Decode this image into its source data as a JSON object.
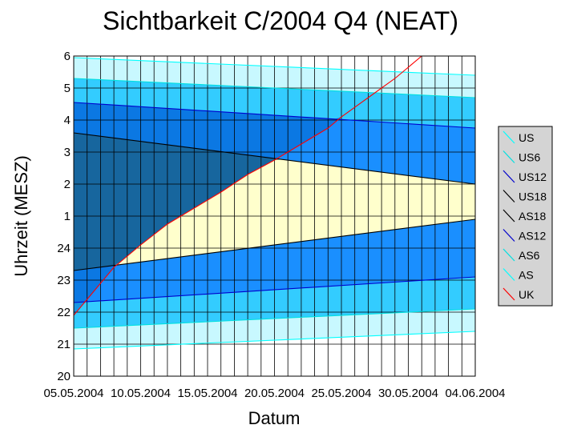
{
  "chart_data": {
    "type": "area",
    "title": "Sichtbarkeit C/2004 Q4 (NEAT)",
    "xlabel": "Datum",
    "ylabel": "Uhrzeit (MESZ)",
    "x_range": [
      "05.05.2004",
      "04.06.2004"
    ],
    "x_ticks": [
      "05.05.2004",
      "10.05.2004",
      "15.05.2004",
      "20.05.2004",
      "25.05.2004",
      "30.05.2004",
      "04.06.2004"
    ],
    "y_tick_labels": [
      "20",
      "21",
      "22",
      "23",
      "24",
      "1",
      "2",
      "3",
      "4",
      "5",
      "6"
    ],
    "y_range_hours_after_20": [
      0,
      10
    ],
    "grid": true,
    "legend_position": "right",
    "series": [
      {
        "name": "US",
        "color": "#00ffff",
        "dates": [
          "05.05.2004",
          "04.06.2004"
        ],
        "hours_after_20": [
          9.95,
          9.4
        ]
      },
      {
        "name": "US6",
        "color": "#00e0e0",
        "dates": [
          "05.05.2004",
          "04.06.2004"
        ],
        "hours_after_20": [
          9.3,
          8.7
        ]
      },
      {
        "name": "US12",
        "color": "#0000cc",
        "dates": [
          "05.05.2004",
          "04.06.2004"
        ],
        "hours_after_20": [
          8.55,
          7.75
        ]
      },
      {
        "name": "US18",
        "color": "#000000",
        "dates": [
          "05.05.2004",
          "04.06.2004"
        ],
        "hours_after_20": [
          7.6,
          6.0
        ]
      },
      {
        "name": "AS18",
        "color": "#000000",
        "dates": [
          "05.05.2004",
          "04.06.2004"
        ],
        "hours_after_20": [
          3.3,
          4.9
        ]
      },
      {
        "name": "AS12",
        "color": "#0000cc",
        "dates": [
          "05.05.2004",
          "04.06.2004"
        ],
        "hours_after_20": [
          2.3,
          3.1
        ]
      },
      {
        "name": "AS6",
        "color": "#00e0e0",
        "dates": [
          "05.05.2004",
          "04.06.2004"
        ],
        "hours_after_20": [
          1.5,
          2.1
        ]
      },
      {
        "name": "AS",
        "color": "#00ffff",
        "dates": [
          "05.05.2004",
          "04.06.2004"
        ],
        "hours_after_20": [
          0.85,
          1.4
        ]
      },
      {
        "name": "UK",
        "color": "#ff0000",
        "dates": [
          "05.05.2004",
          "06.05.2004",
          "07.05.2004",
          "08.05.2004",
          "10.05.2004",
          "12.05.2004",
          "14.05.2004",
          "16.05.2004",
          "18.05.2004",
          "20.05.2004",
          "22.05.2004",
          "24.05.2004",
          "25.05.2004",
          "27.05.2004",
          "29.05.2004",
          "31.05.2004"
        ],
        "hours_after_20": [
          1.9,
          2.4,
          2.9,
          3.4,
          4.1,
          4.75,
          5.25,
          5.75,
          6.3,
          6.75,
          7.25,
          7.75,
          8.1,
          8.7,
          9.3,
          10.0
        ]
      }
    ],
    "fills": {
      "outside": "#ffffff",
      "civil": "#c8f8ff",
      "nautical": "#33ccff",
      "astro": "#1a8fff",
      "darker": "#0066cc",
      "night": "#336666",
      "comet_visible": "#ffffcc"
    }
  }
}
